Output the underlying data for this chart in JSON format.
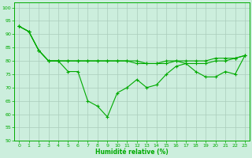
{
  "title": "",
  "xlabel": "Humidité relative (%)",
  "ylabel": "",
  "background_color": "#cceedd",
  "grid_color": "#aaccbb",
  "line_color": "#00aa00",
  "marker_color": "#00aa00",
  "xlim": [
    -0.5,
    23.5
  ],
  "ylim": [
    50,
    102
  ],
  "yticks": [
    50,
    55,
    60,
    65,
    70,
    75,
    80,
    85,
    90,
    95,
    100
  ],
  "xticks": [
    0,
    1,
    2,
    3,
    4,
    5,
    6,
    7,
    8,
    9,
    10,
    11,
    12,
    13,
    14,
    15,
    16,
    17,
    18,
    19,
    20,
    21,
    22,
    23
  ],
  "series": [
    {
      "x": [
        0,
        1,
        2,
        3,
        4,
        5,
        6,
        7,
        8,
        9,
        10,
        11,
        12,
        13,
        14,
        15,
        16,
        17,
        18,
        19,
        20,
        21,
        22,
        23
      ],
      "y": [
        93,
        91,
        84,
        80,
        80,
        76,
        76,
        65,
        63,
        59,
        68,
        70,
        73,
        70,
        71,
        75,
        78,
        79,
        76,
        74,
        74,
        76,
        75,
        82
      ]
    },
    {
      "x": [
        0,
        1,
        2,
        3,
        4,
        5,
        6,
        7,
        8,
        9,
        10,
        11,
        12,
        13,
        14,
        15,
        16,
        17,
        18,
        19,
        20,
        21,
        22,
        23
      ],
      "y": [
        93,
        91,
        84,
        80,
        80,
        80,
        80,
        80,
        80,
        80,
        80,
        80,
        80,
        79,
        79,
        80,
        80,
        80,
        80,
        80,
        81,
        81,
        81,
        82
      ]
    },
    {
      "x": [
        0,
        1,
        2,
        3,
        4,
        5,
        6,
        7,
        8,
        9,
        10,
        11,
        12,
        13,
        14,
        15,
        16,
        17,
        18,
        19,
        20,
        21,
        22,
        23
      ],
      "y": [
        93,
        91,
        84,
        80,
        80,
        80,
        80,
        80,
        80,
        80,
        80,
        80,
        79,
        79,
        79,
        79,
        80,
        79,
        79,
        79,
        80,
        80,
        81,
        82
      ]
    }
  ]
}
